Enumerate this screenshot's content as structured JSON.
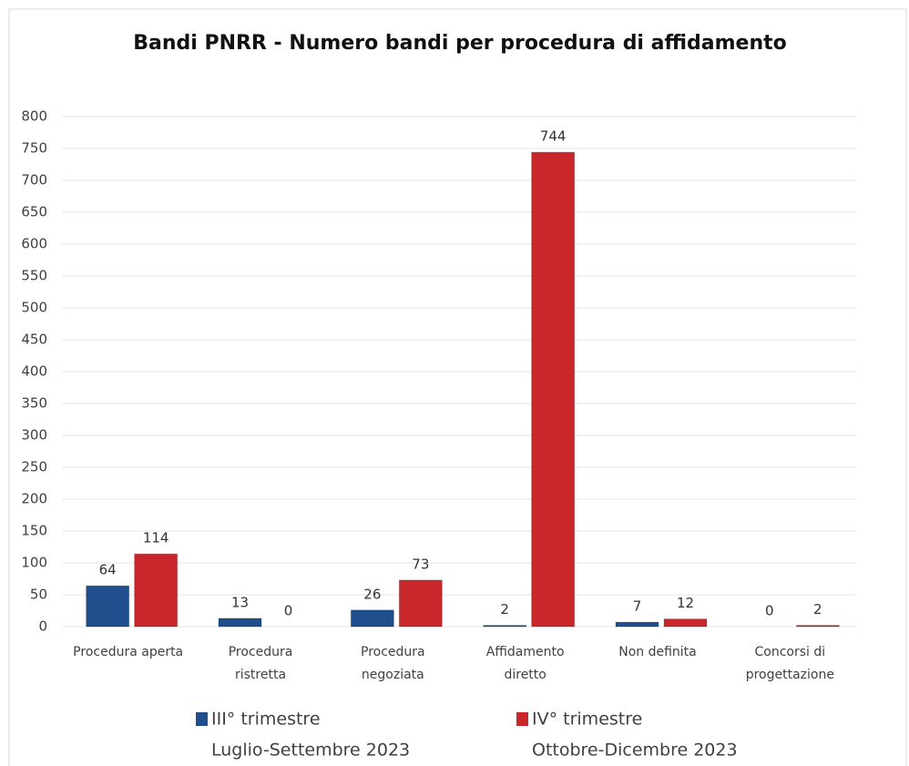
{
  "chart_data": {
    "type": "bar",
    "title": "Bandi PNRR - Numero bandi per procedura  di affidamento",
    "categories": [
      [
        "Procedura aperta"
      ],
      [
        "Procedura",
        "ristretta"
      ],
      [
        "Procedura",
        "negoziata"
      ],
      [
        "Affidamento",
        "diretto"
      ],
      [
        "Non definita"
      ],
      [
        "Concorsi di",
        "progettazione"
      ]
    ],
    "series": [
      {
        "name": [
          "III° trimestre",
          "Luglio-Settembre 2023"
        ],
        "color": "#1f4e8c",
        "values": [
          64,
          13,
          26,
          2,
          7,
          0
        ]
      },
      {
        "name": [
          "IV° trimestre",
          "Ottobre-Dicembre 2023"
        ],
        "color": "#c8282c",
        "values": [
          114,
          0,
          73,
          744,
          12,
          2
        ]
      }
    ],
    "ylim": [
      0,
      800
    ],
    "yticks": [
      0,
      50,
      100,
      150,
      200,
      250,
      300,
      350,
      400,
      450,
      500,
      550,
      600,
      650,
      700,
      750,
      800
    ],
    "grid": true
  }
}
